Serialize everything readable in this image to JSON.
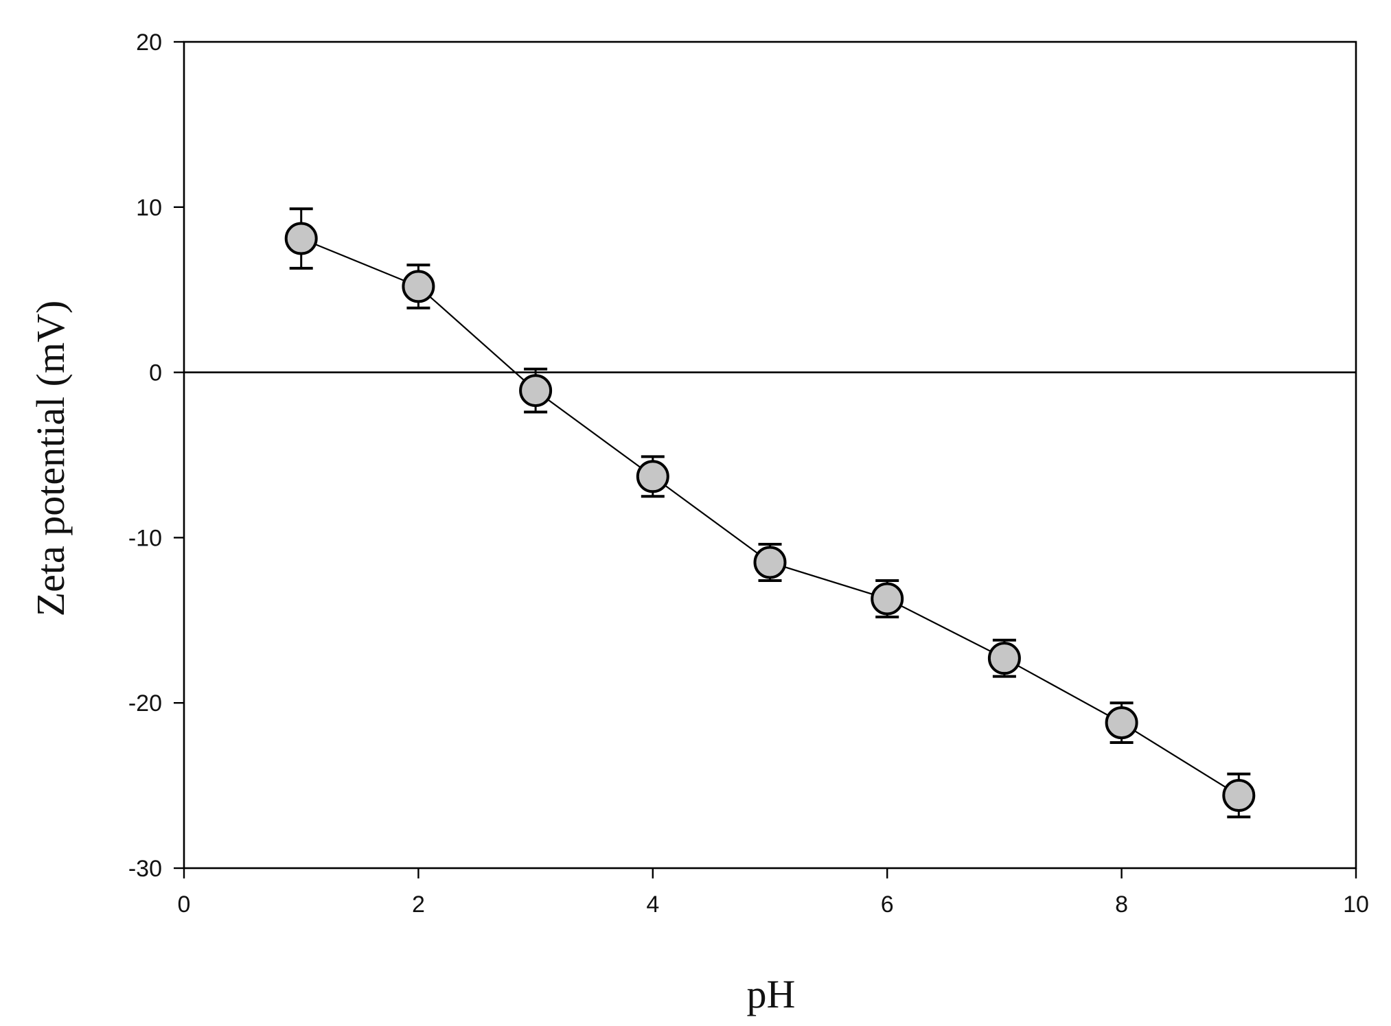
{
  "chart_data": {
    "type": "scatter",
    "xlabel": "pH",
    "ylabel": "Zeta potential (mV)",
    "xlim": [
      0,
      10
    ],
    "ylim": [
      -30,
      20
    ],
    "x_ticks": [
      0,
      2,
      4,
      6,
      8,
      10
    ],
    "y_ticks": [
      -30,
      -20,
      -10,
      0,
      10,
      20
    ],
    "x_tick_labels": [
      "0",
      "2",
      "4",
      "6",
      "8",
      "10"
    ],
    "y_tick_labels": [
      "-30",
      "-20",
      "-10",
      "0",
      "10",
      "20"
    ],
    "grid": false,
    "reference_line_y": 0,
    "series": [
      {
        "x": [
          1,
          2,
          3,
          4,
          5,
          6,
          7,
          8,
          9
        ],
        "y": [
          8.1,
          5.2,
          -1.1,
          -6.3,
          -11.5,
          -13.7,
          -17.3,
          -21.2,
          -25.6
        ],
        "error": [
          1.8,
          1.3,
          1.3,
          1.2,
          1.1,
          1.1,
          1.1,
          1.2,
          1.3
        ],
        "marker_color": "#c6c6c6",
        "line_color": "#000000"
      }
    ]
  }
}
